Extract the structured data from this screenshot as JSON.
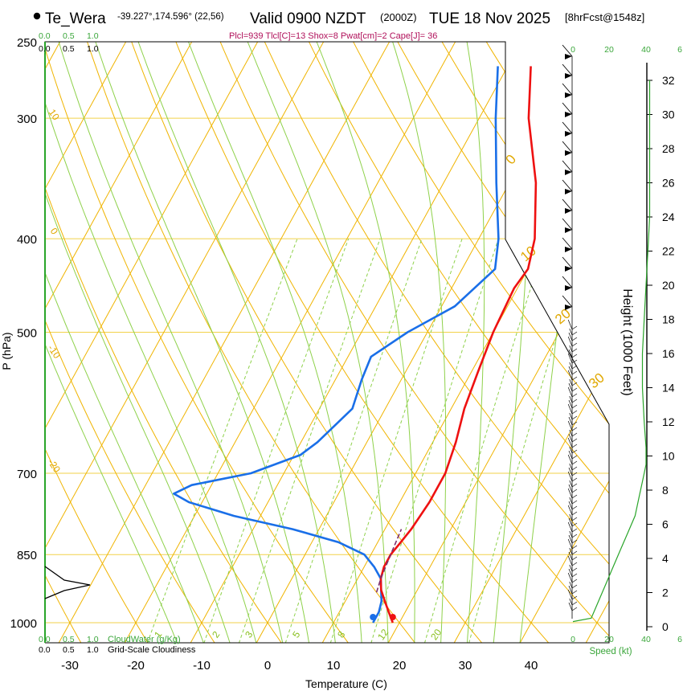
{
  "header": {
    "station": "Te_Wera",
    "coords": "-39.227°,174.596° (22,56)",
    "valid": "Valid 0900 NZDT",
    "zulu": "(2000Z)",
    "date": "TUE 18 Nov 2025",
    "fcst": "[8hrFcst@1548z]",
    "params": "Plcl=939 Tlcl[C]=13 Shox=8 Pwat[cm]=2 Cape[J]= 36"
  },
  "labels": {
    "pressure_axis": "P (hPa)",
    "temperature_axis": "Temperature (C)",
    "height_axis": "Height (1000 Feet)",
    "speed_axis": "Speed (kt)",
    "cloudwater": "CloudWater (g/Kg)",
    "cloudiness": "Grid-Scale Cloudiness"
  },
  "cloud_scale_top_green": [
    "0.0",
    "0.5",
    "1.0"
  ],
  "cloud_scale_top_black": [
    "0.0",
    "0.5",
    "1.0"
  ],
  "cloud_scale_bottom_green": [
    "0.0",
    "0.5",
    "1.0"
  ],
  "cloud_scale_bottom_black": [
    "0.0",
    "0.5",
    "1.0"
  ],
  "speed_ticks_top": [
    "0",
    "20",
    "40",
    "6"
  ],
  "speed_ticks_bottom": [
    "0",
    "20",
    "40",
    "6"
  ],
  "colors": {
    "temperature": "#ee1111",
    "dewpoint": "#1a6fe8",
    "isotherm": "#f0b400",
    "dry_adiabat": "#f0b400",
    "moist_adiabat": "#8ed14a",
    "mixing_ratio": "#8ed14a",
    "isobar": "#f2d24a",
    "parcel": "#7b2f6e",
    "wind_profile": "#2aa52a"
  },
  "chart_data": {
    "type": "skew-t",
    "title": "Te_Wera Valid 0900 NZDT TUE 18 Nov 2025",
    "pressure_ticks": [
      250,
      300,
      400,
      500,
      700,
      850,
      1000
    ],
    "temperature_ticks": [
      -30,
      -20,
      -10,
      0,
      10,
      20,
      30,
      40
    ],
    "height_ticks": [
      0,
      2,
      4,
      6,
      8,
      10,
      12,
      14,
      16,
      18,
      20,
      22,
      24,
      26,
      28,
      30,
      32
    ],
    "isotherm_labels": [
      {
        "text": "-20"
      },
      {
        "text": "-10"
      },
      {
        "text": "0"
      },
      {
        "text": "10"
      },
      {
        "text": "0"
      },
      {
        "text": "10"
      },
      {
        "text": "20"
      },
      {
        "text": "30"
      }
    ],
    "mixing_ratio_labels": [
      "1",
      "2",
      "3",
      "5",
      "8",
      "12",
      "20"
    ],
    "temperature": {
      "p": [
        1000,
        975,
        950,
        925,
        900,
        875,
        850,
        825,
        800,
        750,
        700,
        650,
        600,
        550,
        500,
        450,
        430,
        400,
        350,
        300,
        265
      ],
      "t": [
        19,
        17.5,
        16,
        14.5,
        13.5,
        13,
        13,
        13.5,
        14,
        14.5,
        14.5,
        13.5,
        12,
        11,
        10,
        9.5,
        10,
        8.5,
        4,
        -2.5,
        -6.5
      ]
    },
    "dewpoint": {
      "p": [
        1000,
        975,
        950,
        925,
        900,
        875,
        850,
        825,
        800,
        775,
        750,
        735,
        720,
        700,
        670,
        650,
        600,
        560,
        530,
        500,
        470,
        430,
        400,
        350,
        300,
        265
      ],
      "td": [
        16,
        16,
        15.5,
        14.5,
        13.5,
        11.5,
        9,
        4,
        -4,
        -14,
        -22,
        -25,
        -23,
        -15,
        -9,
        -7.5,
        -5,
        -6,
        -6.5,
        -3,
        2,
        5,
        3,
        -2,
        -7.5,
        -11.5
      ]
    },
    "parcel": {
      "p": [
        930,
        900,
        850,
        800
      ],
      "t": [
        14,
        13.5,
        13,
        12.5
      ]
    },
    "wind_profile": {
      "speed": [
        10,
        14,
        18,
        22,
        26,
        30,
        34,
        36,
        38,
        40,
        40,
        39,
        38,
        38,
        39,
        40,
        41,
        42,
        42,
        42
      ],
      "height_kft": [
        0.5,
        1.5,
        2.5,
        3.5,
        4.5,
        5.5,
        6.5,
        7.5,
        8.5,
        9.5,
        10.5,
        12,
        14,
        16,
        18,
        20,
        22,
        24,
        27,
        32
      ]
    }
  }
}
